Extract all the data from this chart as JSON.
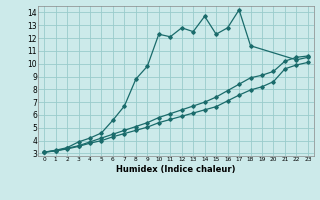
{
  "xlabel": "Humidex (Indice chaleur)",
  "bg_color": "#cceaea",
  "grid_color": "#99cccc",
  "line_color": "#1a6b6b",
  "xlim": [
    -0.5,
    23.5
  ],
  "ylim": [
    2.8,
    14.5
  ],
  "xticks": [
    0,
    1,
    2,
    3,
    4,
    5,
    6,
    7,
    8,
    9,
    10,
    11,
    12,
    13,
    14,
    15,
    16,
    17,
    18,
    19,
    20,
    21,
    22,
    23
  ],
  "yticks": [
    3,
    4,
    5,
    6,
    7,
    8,
    9,
    10,
    11,
    12,
    13,
    14
  ],
  "line1_x": [
    0,
    1,
    2,
    3,
    4,
    5,
    6,
    7,
    8,
    9,
    10,
    11,
    12,
    13,
    14,
    15,
    16,
    17,
    18,
    22,
    23
  ],
  "line1_y": [
    3.1,
    3.25,
    3.45,
    3.9,
    4.2,
    4.6,
    5.6,
    6.7,
    8.8,
    9.8,
    12.3,
    12.1,
    12.8,
    12.5,
    13.7,
    12.3,
    12.8,
    14.2,
    11.4,
    10.3,
    10.5
  ],
  "line2_x": [
    0,
    1,
    2,
    3,
    4,
    5,
    6,
    7,
    8,
    9,
    10,
    11,
    12,
    13,
    14,
    15,
    16,
    17,
    18,
    19,
    20,
    21,
    22,
    23
  ],
  "line2_y": [
    3.1,
    3.2,
    3.4,
    3.6,
    3.9,
    4.2,
    4.5,
    4.8,
    5.1,
    5.4,
    5.8,
    6.1,
    6.4,
    6.7,
    7.0,
    7.4,
    7.9,
    8.4,
    8.9,
    9.1,
    9.4,
    10.2,
    10.5,
    10.6
  ],
  "line3_x": [
    0,
    1,
    2,
    3,
    4,
    5,
    6,
    7,
    8,
    9,
    10,
    11,
    12,
    13,
    14,
    15,
    16,
    17,
    18,
    19,
    20,
    21,
    22,
    23
  ],
  "line3_y": [
    3.1,
    3.2,
    3.35,
    3.55,
    3.8,
    4.0,
    4.3,
    4.55,
    4.8,
    5.05,
    5.4,
    5.65,
    5.9,
    6.15,
    6.4,
    6.65,
    7.1,
    7.55,
    7.95,
    8.2,
    8.6,
    9.6,
    9.9,
    10.1
  ]
}
